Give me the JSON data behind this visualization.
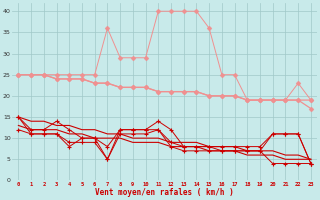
{
  "x": [
    0,
    1,
    2,
    3,
    4,
    5,
    6,
    7,
    8,
    9,
    10,
    11,
    12,
    13,
    14,
    15,
    16,
    17,
    18,
    19,
    20,
    21,
    22,
    23
  ],
  "rafales": [
    25,
    25,
    25,
    25,
    25,
    25,
    25,
    36,
    29,
    29,
    29,
    40,
    40,
    40,
    40,
    36,
    25,
    25,
    19,
    19,
    19,
    19,
    23,
    19
  ],
  "trend_light1": [
    25,
    25,
    25,
    24,
    24,
    24,
    23,
    23,
    22,
    22,
    22,
    21,
    21,
    21,
    21,
    20,
    20,
    20,
    19,
    19,
    19,
    19,
    19,
    19
  ],
  "trend_light2": [
    25,
    25,
    25,
    24,
    24,
    24,
    23,
    23,
    22,
    22,
    22,
    21,
    21,
    21,
    21,
    20,
    20,
    20,
    19,
    19,
    19,
    19,
    19,
    17
  ],
  "dark1": [
    15,
    12,
    12,
    14,
    12,
    10,
    10,
    8,
    12,
    12,
    12,
    14,
    12,
    8,
    8,
    8,
    8,
    8,
    8,
    8,
    11,
    11,
    11,
    4
  ],
  "dark2": [
    15,
    11,
    11,
    11,
    9,
    9,
    9,
    5,
    11,
    11,
    11,
    12,
    8,
    7,
    7,
    7,
    7,
    7,
    7,
    7,
    11,
    11,
    11,
    4
  ],
  "dark_trend1": [
    15,
    14,
    14,
    13,
    13,
    12,
    12,
    11,
    11,
    10,
    10,
    10,
    9,
    9,
    9,
    8,
    8,
    8,
    7,
    7,
    7,
    6,
    6,
    5
  ],
  "dark_trend2": [
    13,
    12,
    12,
    12,
    11,
    11,
    10,
    10,
    10,
    9,
    9,
    9,
    8,
    8,
    8,
    7,
    7,
    7,
    6,
    6,
    6,
    5,
    5,
    5
  ],
  "dark3": [
    12,
    11,
    11,
    11,
    8,
    10,
    10,
    5,
    12,
    12,
    12,
    12,
    9,
    8,
    8,
    8,
    7,
    7,
    7,
    7,
    4,
    4,
    4,
    4
  ],
  "bg_color": "#c8eaea",
  "grid_color": "#a0c8c8",
  "lc": "#f09090",
  "dc": "#cc0000",
  "xlabel": "Vent moyen/en rafales ( km/h )",
  "ylim": [
    0,
    42
  ],
  "xlim": [
    -0.5,
    23.5
  ],
  "yticks": [
    0,
    5,
    10,
    15,
    20,
    25,
    30,
    35,
    40
  ]
}
